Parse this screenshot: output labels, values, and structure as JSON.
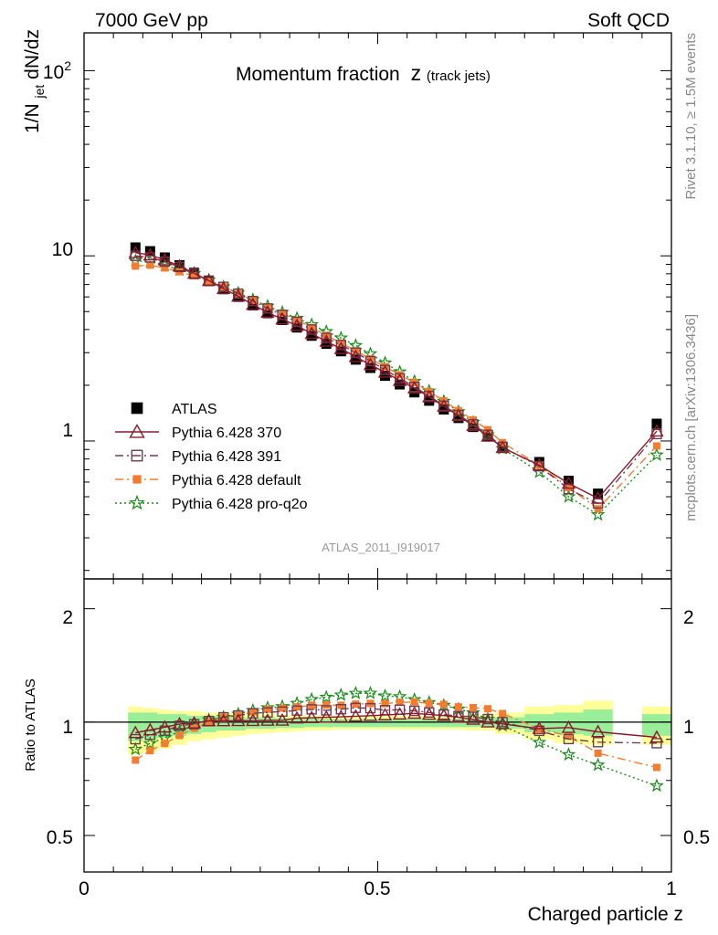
{
  "header": {
    "left": "7000 GeV pp",
    "right": "Soft QCD"
  },
  "side": {
    "top": "Rivet 3.1.10, ≥ 1.5M events",
    "bottom": "mcplots.cern.ch [arXiv:1306.3436]"
  },
  "chart_data": {
    "type": "line",
    "title": "Momentum fraction",
    "title_var": "z",
    "title_sub": "(track jets)",
    "analysis_label": "ATLAS_2011_I919017",
    "xlabel": "Charged particle z",
    "ylabel_main": "1/N",
    "ylabel_sub": "jet",
    "ylabel_tail": " dN/dz",
    "ylabel_ratio": "Ratio to ATLAS",
    "xlim": [
      0,
      1
    ],
    "ylim_main": [
      0.18,
      160
    ],
    "yscale_main": "log",
    "ylim_ratio": [
      0.4,
      2.4
    ],
    "yscale_ratio": "log",
    "x_ticks": [
      "0",
      "0.5",
      "1"
    ],
    "y_ticks_main": [
      "10",
      "1"
    ],
    "y_tick_main_top": "10",
    "y_tick_main_top_exp": "2",
    "y_ticks_ratio": [
      "2",
      "1",
      "0.5"
    ],
    "legend_position": "bottom-left",
    "x": [
      0.0875,
      0.1125,
      0.1375,
      0.1625,
      0.1875,
      0.2125,
      0.2375,
      0.2625,
      0.2875,
      0.3125,
      0.3375,
      0.3625,
      0.3875,
      0.4125,
      0.4375,
      0.4625,
      0.4875,
      0.5125,
      0.5375,
      0.5625,
      0.5875,
      0.6125,
      0.6375,
      0.6625,
      0.6875,
      0.7125,
      0.775,
      0.825,
      0.875,
      0.975
    ],
    "series": [
      {
        "name": "ATLAS",
        "color": "#000000",
        "marker": "square-filled",
        "values": [
          11.1,
          10.6,
          9.8,
          8.9,
          8.1,
          7.3,
          6.6,
          6.0,
          5.4,
          4.9,
          4.5,
          4.1,
          3.7,
          3.35,
          3.05,
          2.75,
          2.48,
          2.25,
          2.02,
          1.83,
          1.65,
          1.48,
          1.33,
          1.19,
          1.06,
          0.93,
          0.77,
          0.61,
          0.52,
          1.24
        ]
      },
      {
        "name": "Pythia 6.428 370",
        "color": "#8b1a2b",
        "marker": "triangle-open",
        "dash": "",
        "values": [
          10.4,
          10.1,
          9.5,
          8.8,
          8.05,
          7.35,
          6.65,
          6.05,
          5.45,
          4.95,
          4.55,
          4.2,
          3.8,
          3.45,
          3.15,
          2.85,
          2.58,
          2.35,
          2.12,
          1.93,
          1.73,
          1.54,
          1.37,
          1.21,
          1.06,
          0.92,
          0.74,
          0.59,
          0.49,
          1.13
        ]
      },
      {
        "name": "Pythia 6.428 391",
        "color": "#6e3d52",
        "marker": "square-open",
        "dash": "9,4,2,4",
        "values": [
          10.0,
          9.8,
          9.3,
          8.7,
          8.0,
          7.35,
          6.8,
          6.25,
          5.7,
          5.2,
          4.8,
          4.4,
          4.0,
          3.6,
          3.3,
          3.0,
          2.7,
          2.42,
          2.18,
          1.96,
          1.75,
          1.55,
          1.38,
          1.23,
          1.08,
          0.93,
          0.73,
          0.55,
          0.46,
          1.09
        ]
      },
      {
        "name": "Pythia 6.428 default",
        "color": "#f47c30",
        "marker": "square-filled",
        "dash": "9,4,2,4",
        "values": [
          8.8,
          8.9,
          8.6,
          8.2,
          7.8,
          7.3,
          6.8,
          6.25,
          5.75,
          5.3,
          4.9,
          4.5,
          4.1,
          3.72,
          3.38,
          3.07,
          2.78,
          2.52,
          2.28,
          2.07,
          1.85,
          1.65,
          1.46,
          1.3,
          1.15,
          0.98,
          0.74,
          0.56,
          0.43,
          0.94
        ]
      },
      {
        "name": "Pythia 6.428 pro-q2o",
        "color": "#1a8a1a",
        "marker": "star-open",
        "dash": "2,3",
        "values": [
          9.4,
          9.3,
          8.9,
          8.4,
          8.0,
          7.4,
          6.8,
          6.3,
          5.8,
          5.35,
          4.95,
          4.6,
          4.25,
          3.9,
          3.6,
          3.28,
          2.96,
          2.64,
          2.36,
          2.1,
          1.86,
          1.64,
          1.44,
          1.26,
          1.08,
          0.91,
          0.68,
          0.5,
          0.4,
          0.84
        ]
      }
    ],
    "ratio_bands": [
      {
        "x0": 0.075,
        "x1": 0.1,
        "yellow": [
          0.82,
          1.1
        ],
        "green": [
          0.89,
          1.06
        ]
      },
      {
        "x0": 0.1,
        "x1": 0.125,
        "yellow": [
          0.83,
          1.09
        ],
        "green": [
          0.9,
          1.06
        ]
      },
      {
        "x0": 0.125,
        "x1": 0.15,
        "yellow": [
          0.85,
          1.08
        ],
        "green": [
          0.91,
          1.05
        ]
      },
      {
        "x0": 0.15,
        "x1": 0.175,
        "yellow": [
          0.87,
          1.07
        ],
        "green": [
          0.92,
          1.05
        ]
      },
      {
        "x0": 0.175,
        "x1": 0.2,
        "yellow": [
          0.89,
          1.07
        ],
        "green": [
          0.93,
          1.04
        ]
      },
      {
        "x0": 0.2,
        "x1": 0.225,
        "yellow": [
          0.9,
          1.06
        ],
        "green": [
          0.94,
          1.04
        ]
      },
      {
        "x0": 0.225,
        "x1": 0.25,
        "yellow": [
          0.91,
          1.06
        ],
        "green": [
          0.95,
          1.04
        ]
      },
      {
        "x0": 0.25,
        "x1": 0.275,
        "yellow": [
          0.92,
          1.05
        ],
        "green": [
          0.95,
          1.03
        ]
      },
      {
        "x0": 0.275,
        "x1": 0.3,
        "yellow": [
          0.93,
          1.05
        ],
        "green": [
          0.96,
          1.03
        ]
      },
      {
        "x0": 0.3,
        "x1": 0.325,
        "yellow": [
          0.935,
          1.05
        ],
        "green": [
          0.96,
          1.03
        ]
      },
      {
        "x0": 0.325,
        "x1": 0.35,
        "yellow": [
          0.94,
          1.045
        ],
        "green": [
          0.965,
          1.025
        ]
      },
      {
        "x0": 0.35,
        "x1": 0.375,
        "yellow": [
          0.945,
          1.045
        ],
        "green": [
          0.965,
          1.025
        ]
      },
      {
        "x0": 0.375,
        "x1": 0.4,
        "yellow": [
          0.95,
          1.04
        ],
        "green": [
          0.97,
          1.025
        ]
      },
      {
        "x0": 0.4,
        "x1": 0.425,
        "yellow": [
          0.95,
          1.04
        ],
        "green": [
          0.97,
          1.02
        ]
      },
      {
        "x0": 0.425,
        "x1": 0.45,
        "yellow": [
          0.955,
          1.04
        ],
        "green": [
          0.97,
          1.02
        ]
      },
      {
        "x0": 0.45,
        "x1": 0.475,
        "yellow": [
          0.955,
          1.04
        ],
        "green": [
          0.97,
          1.02
        ]
      },
      {
        "x0": 0.475,
        "x1": 0.5,
        "yellow": [
          0.955,
          1.04
        ],
        "green": [
          0.97,
          1.02
        ]
      },
      {
        "x0": 0.5,
        "x1": 0.525,
        "yellow": [
          0.955,
          1.04
        ],
        "green": [
          0.97,
          1.02
        ]
      },
      {
        "x0": 0.525,
        "x1": 0.55,
        "yellow": [
          0.955,
          1.04
        ],
        "green": [
          0.97,
          1.02
        ]
      },
      {
        "x0": 0.55,
        "x1": 0.575,
        "yellow": [
          0.955,
          1.04
        ],
        "green": [
          0.97,
          1.02
        ]
      },
      {
        "x0": 0.575,
        "x1": 0.6,
        "yellow": [
          0.955,
          1.04
        ],
        "green": [
          0.97,
          1.02
        ]
      },
      {
        "x0": 0.6,
        "x1": 0.625,
        "yellow": [
          0.955,
          1.04
        ],
        "green": [
          0.97,
          1.02
        ]
      },
      {
        "x0": 0.625,
        "x1": 0.65,
        "yellow": [
          0.955,
          1.04
        ],
        "green": [
          0.97,
          1.02
        ]
      },
      {
        "x0": 0.65,
        "x1": 0.675,
        "yellow": [
          0.95,
          1.045
        ],
        "green": [
          0.97,
          1.025
        ]
      },
      {
        "x0": 0.675,
        "x1": 0.7,
        "yellow": [
          0.95,
          1.05
        ],
        "green": [
          0.97,
          1.03
        ]
      },
      {
        "x0": 0.7,
        "x1": 0.75,
        "yellow": [
          0.93,
          1.06
        ],
        "green": [
          0.96,
          1.03
        ]
      },
      {
        "x0": 0.75,
        "x1": 0.8,
        "yellow": [
          0.9,
          1.1
        ],
        "green": [
          0.94,
          1.05
        ]
      },
      {
        "x0": 0.8,
        "x1": 0.85,
        "yellow": [
          0.88,
          1.11
        ],
        "green": [
          0.93,
          1.06
        ]
      },
      {
        "x0": 0.85,
        "x1": 0.9,
        "yellow": [
          0.87,
          1.14
        ],
        "green": [
          0.92,
          1.08
        ]
      },
      {
        "x0": 0.95,
        "x1": 1.0,
        "yellow": [
          0.87,
          1.1
        ],
        "green": [
          0.92,
          1.05
        ]
      }
    ]
  }
}
